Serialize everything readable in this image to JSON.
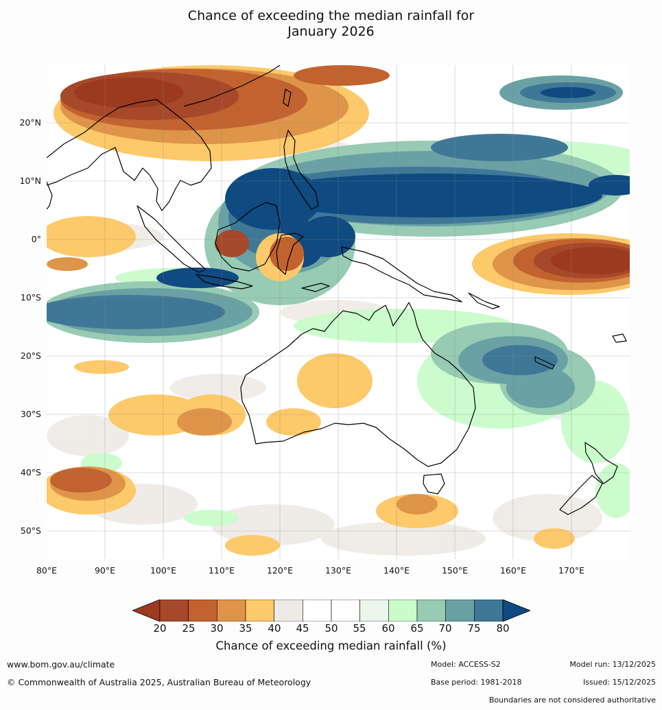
{
  "title_line1": "Chance of exceeding the median rainfall for",
  "title_line2": "January 2026",
  "map": {
    "lat_labels": [
      "20°N",
      "10°N",
      "0°",
      "10°S",
      "20°S",
      "30°S",
      "40°S",
      "50°S"
    ],
    "lon_labels": [
      "80°E",
      "90°E",
      "100°E",
      "110°E",
      "120°E",
      "130°E",
      "140°E",
      "150°E",
      "160°E",
      "170°E"
    ],
    "extent": {
      "lon_min": 80,
      "lon_max": 180,
      "lat_min": -55,
      "lat_max": 30
    }
  },
  "legend": {
    "ticks": [
      "20",
      "25",
      "30",
      "35",
      "40",
      "45",
      "50",
      "55",
      "60",
      "65",
      "70",
      "75",
      "80"
    ],
    "colors": [
      "#9c3a20",
      "#a6482a",
      "#c2622f",
      "#de9449",
      "#fdc96a",
      "#eeebe6",
      "#ffffff",
      "#ffffff",
      "#eaf5ec",
      "#c9fcca",
      "#97cbb3",
      "#6aa1a4",
      "#3f7897",
      "#0f4a80"
    ],
    "label": "Chance of exceeding median rainfall (%)"
  },
  "footer": {
    "website": "www.bom.gov.au/climate",
    "copyright": "© Commonwealth of Australia 2025, Australian Bureau of Meteorology",
    "model": "Model: ACCESS-S2",
    "base_period": "Base period: 1981-2018",
    "model_run": "Model run: 13/12/2025",
    "issued": "Issued: 15/12/2025",
    "disclaimer": "Boundaries are not considered authoritative"
  }
}
